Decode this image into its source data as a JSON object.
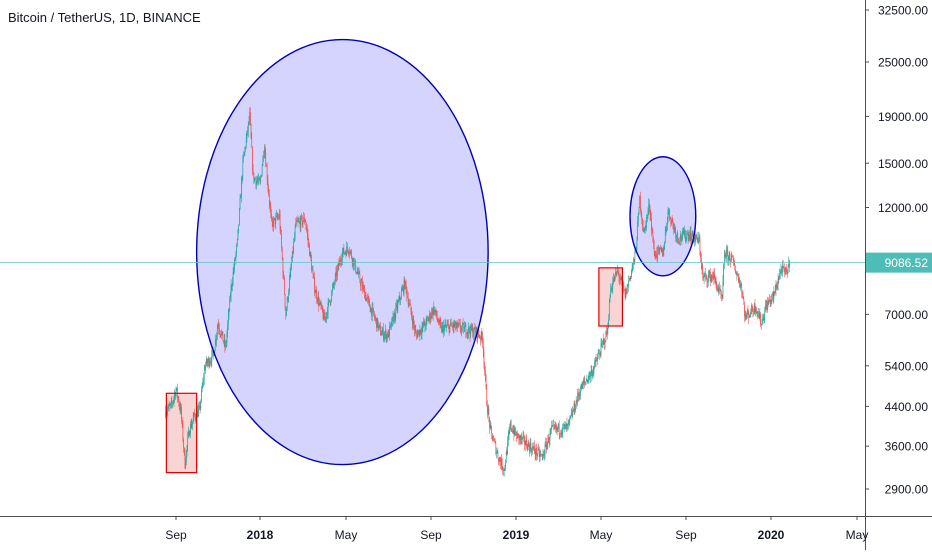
{
  "header": {
    "title": "Bitcoin / TetherUS, 1D, BINANCE"
  },
  "colors": {
    "up": "#26a69a",
    "down": "#ef5350",
    "price_line": "#5fc4c0",
    "circle_stroke": "#0000b8",
    "circle_fill": "#c9c9ff",
    "box_stroke": "#e00000",
    "box_fill": "#f7c6c6",
    "axis_text": "#131722",
    "price_label_bg": "#4fbdb7"
  },
  "current_price": {
    "label": "9086.52",
    "value": 9086.52
  },
  "chart_data": {
    "type": "candlestick",
    "title": "Bitcoin / TetherUS, 1D, BINANCE",
    "y_scale": "log",
    "grid": false,
    "x_ticks": [
      "Sep",
      "2018",
      "May",
      "Sep",
      "2019",
      "May",
      "Sep",
      "2020",
      "May"
    ],
    "y_ticks": [
      {
        "label": "32500.00",
        "value": 32500
      },
      {
        "label": "25000.00",
        "value": 25000
      },
      {
        "label": "19000.00",
        "value": 19000
      },
      {
        "label": "15000.00",
        "value": 15000
      },
      {
        "label": "12000.00",
        "value": 12000
      },
      {
        "label": "9086.52",
        "value": 9086.52
      },
      {
        "label": "7000.00",
        "value": 7000
      },
      {
        "label": "5400.00",
        "value": 5400
      },
      {
        "label": "4400.00",
        "value": 4400
      },
      {
        "label": "3600.00",
        "value": 3600
      },
      {
        "label": "2900.00",
        "value": 2900
      }
    ],
    "price_path": [
      [
        "2017-08-17",
        4300
      ],
      [
        "2017-08-25",
        4400
      ],
      [
        "2017-09-01",
        4800
      ],
      [
        "2017-09-08",
        4300
      ],
      [
        "2017-09-14",
        3300
      ],
      [
        "2017-09-20",
        3900
      ],
      [
        "2017-09-28",
        4200
      ],
      [
        "2017-10-05",
        4300
      ],
      [
        "2017-10-13",
        5400
      ],
      [
        "2017-10-25",
        5700
      ],
      [
        "2017-11-01",
        6700
      ],
      [
        "2017-11-12",
        5900
      ],
      [
        "2017-11-20",
        8000
      ],
      [
        "2017-11-29",
        10000
      ],
      [
        "2017-12-07",
        15000
      ],
      [
        "2017-12-17",
        19000
      ],
      [
        "2017-12-22",
        14000
      ],
      [
        "2018-01-01",
        13500
      ],
      [
        "2018-01-07",
        16500
      ],
      [
        "2018-01-17",
        11000
      ],
      [
        "2018-01-28",
        11500
      ],
      [
        "2018-02-06",
        7000
      ],
      [
        "2018-02-20",
        11000
      ],
      [
        "2018-03-05",
        11300
      ],
      [
        "2018-03-18",
        8000
      ],
      [
        "2018-04-01",
        6800
      ],
      [
        "2018-04-12",
        7900
      ],
      [
        "2018-04-25",
        9500
      ],
      [
        "2018-05-05",
        9800
      ],
      [
        "2018-05-20",
        8400
      ],
      [
        "2018-06-01",
        7500
      ],
      [
        "2018-06-20",
        6400
      ],
      [
        "2018-07-01",
        6300
      ],
      [
        "2018-07-25",
        8200
      ],
      [
        "2018-08-10",
        6300
      ],
      [
        "2018-08-25",
        6700
      ],
      [
        "2018-09-05",
        7200
      ],
      [
        "2018-09-15",
        6500
      ],
      [
        "2018-10-01",
        6600
      ],
      [
        "2018-10-20",
        6500
      ],
      [
        "2018-11-05",
        6400
      ],
      [
        "2018-11-14",
        6200
      ],
      [
        "2018-11-20",
        4500
      ],
      [
        "2018-11-25",
        3900
      ],
      [
        "2018-12-07",
        3400
      ],
      [
        "2018-12-15",
        3200
      ],
      [
        "2018-12-24",
        4000
      ],
      [
        "2019-01-01",
        3800
      ],
      [
        "2019-01-20",
        3600
      ],
      [
        "2019-02-07",
        3400
      ],
      [
        "2019-02-20",
        3900
      ],
      [
        "2019-03-15",
        3950
      ],
      [
        "2019-04-02",
        4800
      ],
      [
        "2019-04-20",
        5300
      ],
      [
        "2019-05-10",
        6400
      ],
      [
        "2019-05-15",
        8000
      ],
      [
        "2019-05-25",
        8700
      ],
      [
        "2019-06-05",
        7700
      ],
      [
        "2019-06-20",
        9500
      ],
      [
        "2019-06-26",
        12500
      ],
      [
        "2019-07-02",
        10500
      ],
      [
        "2019-07-10",
        12200
      ],
      [
        "2019-07-17",
        9500
      ],
      [
        "2019-07-30",
        9600
      ],
      [
        "2019-08-06",
        11800
      ],
      [
        "2019-08-20",
        10300
      ],
      [
        "2019-09-05",
        10500
      ],
      [
        "2019-09-20",
        10100
      ],
      [
        "2019-09-25",
        8400
      ],
      [
        "2019-10-10",
        8500
      ],
      [
        "2019-10-23",
        7500
      ],
      [
        "2019-10-26",
        9500
      ],
      [
        "2019-11-05",
        9300
      ],
      [
        "2019-11-20",
        8000
      ],
      [
        "2019-11-25",
        6900
      ],
      [
        "2019-12-10",
        7300
      ],
      [
        "2019-12-18",
        6700
      ],
      [
        "2019-12-25",
        7300
      ],
      [
        "2020-01-05",
        7700
      ],
      [
        "2020-01-15",
        8800
      ],
      [
        "2020-01-22",
        8600
      ],
      [
        "2020-01-27",
        9086
      ]
    ],
    "annotations": [
      {
        "type": "rectangle",
        "from": [
          "2017-08-18",
          4700
        ],
        "to": [
          "2017-10-01",
          3150
        ]
      },
      {
        "type": "ellipse",
        "from": [
          "2017-10-01",
          28000
        ],
        "to": [
          "2018-11-22",
          3280
        ]
      },
      {
        "type": "rectangle",
        "from": [
          "2019-04-28",
          8850
        ],
        "to": [
          "2019-06-01",
          6600
        ]
      },
      {
        "type": "ellipse",
        "from": [
          "2019-06-12",
          15500
        ],
        "to": [
          "2019-09-15",
          8500
        ]
      }
    ]
  }
}
